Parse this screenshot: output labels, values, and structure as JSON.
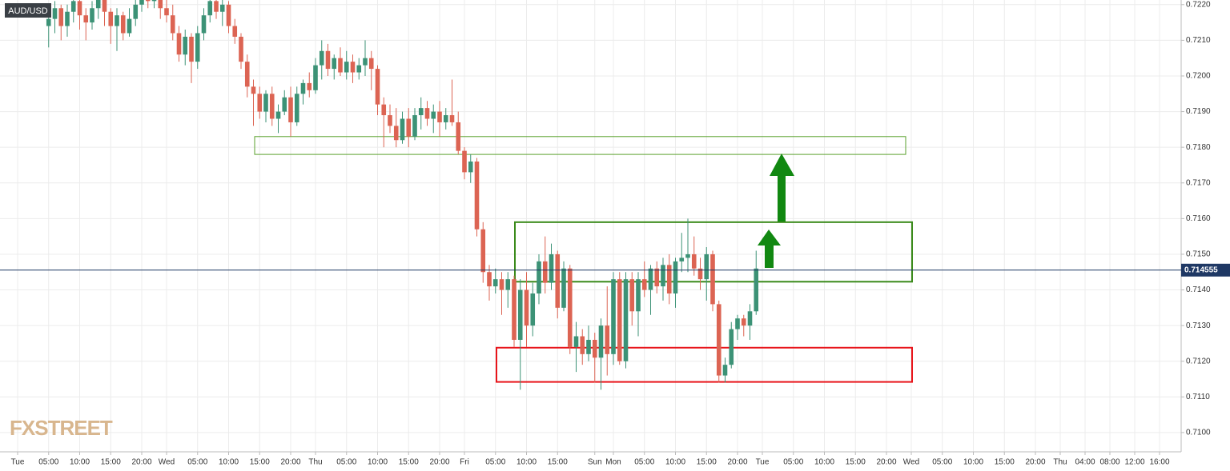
{
  "chart_data": {
    "type": "candlestick",
    "symbol": "AUD/USD",
    "watermark": "FXSTREET",
    "categories": [
      "Tue",
      null,
      null,
      null,
      null,
      "05:00",
      null,
      null,
      null,
      null,
      "10:00",
      null,
      null,
      null,
      null,
      "15:00",
      null,
      null,
      null,
      null,
      "20:00",
      null,
      null,
      null,
      "Wed",
      null,
      null,
      null,
      null,
      "05:00",
      null,
      null,
      null,
      null,
      "10:00",
      null,
      null,
      null,
      null,
      "15:00",
      null,
      null,
      null,
      null,
      "20:00",
      null,
      null,
      null,
      "Thu",
      null,
      null,
      null,
      null,
      "05:00",
      null,
      null,
      null,
      null,
      "10:00",
      null,
      null,
      null,
      null,
      "15:00",
      null,
      null,
      null,
      null,
      "20:00",
      null,
      null,
      null,
      "Fri",
      null,
      null,
      null,
      null,
      "05:00",
      null,
      null,
      null,
      null,
      "10:00",
      null,
      null,
      null,
      null,
      "15:00",
      null,
      null,
      null,
      null,
      null,
      "Sun",
      null,
      null,
      "Mon",
      null,
      null,
      null,
      null,
      "05:00",
      null,
      null,
      null,
      null,
      "10:00",
      null,
      null,
      null,
      null,
      "15:00",
      null,
      null,
      null,
      null,
      "20:00",
      null,
      null,
      null,
      "Tue",
      null,
      null,
      null,
      null,
      "05:00",
      null,
      null,
      null,
      null,
      "10:00",
      null,
      null,
      null,
      null,
      "15:00",
      null,
      null,
      null,
      null,
      "20:00",
      null,
      null,
      null,
      "Wed",
      null,
      null,
      null,
      null,
      "05:00",
      null,
      null,
      null,
      null,
      "10:00",
      null,
      null,
      null,
      null,
      "15:00",
      null,
      null,
      null,
      null,
      "20:00",
      null,
      null,
      null,
      "Thu",
      null,
      null,
      null,
      "04:00",
      null,
      null,
      null,
      "08:00",
      null,
      null,
      null,
      "12:00",
      null,
      null,
      null,
      "16:00"
    ],
    "open": [
      null,
      null,
      null,
      null,
      null,
      0.7214,
      0.7216,
      0.7219,
      0.7214,
      0.7218,
      0.7221,
      0.7217,
      0.7215,
      0.7219,
      0.7222,
      0.7218,
      0.7214,
      0.7217,
      0.7212,
      0.7216,
      0.722,
      0.7223,
      0.7221,
      0.7222,
      0.7219,
      0.7217,
      0.7212,
      0.7206,
      0.7211,
      0.7204,
      0.7212,
      0.7217,
      0.7221,
      0.7218,
      0.722,
      0.7214,
      0.7211,
      0.7204,
      0.7197,
      0.7195,
      0.719,
      0.7195,
      0.7188,
      0.719,
      0.7194,
      0.7187,
      0.7195,
      0.7198,
      0.7196,
      0.7203,
      0.7207,
      0.7202,
      0.7205,
      0.7201,
      0.7204,
      0.7201,
      0.7203,
      0.7205,
      0.7202,
      0.7192,
      0.7189,
      0.7186,
      0.7182,
      0.7188,
      0.7183,
      0.7189,
      0.7191,
      0.7188,
      0.719,
      0.7187,
      0.7189,
      0.7187,
      0.7179,
      0.7173,
      0.7176,
      0.7157,
      0.7145,
      0.7141,
      0.7143,
      0.714,
      0.7143,
      0.7126,
      0.714,
      0.713,
      0.7139,
      0.7148,
      0.7142,
      0.715,
      0.7135,
      0.7146,
      0.7124,
      0.7127,
      0.7122,
      0.7126,
      0.7121,
      0.713,
      0.7122,
      0.7143,
      0.712,
      0.7143,
      0.7134,
      0.7143,
      0.714,
      0.7146,
      0.7141,
      0.7147,
      0.7139,
      0.7148,
      0.7149,
      0.715,
      0.7146,
      0.7143,
      0.715,
      0.7136,
      0.7116,
      0.7119,
      0.7129,
      0.7132,
      0.713,
      0.7134,
      null,
      null,
      null,
      null,
      null,
      null,
      null,
      null,
      null,
      null,
      null,
      null,
      null,
      null,
      null,
      null,
      null,
      null,
      null,
      null,
      null,
      null,
      null,
      null,
      null,
      null,
      null,
      null,
      null,
      null,
      null,
      null,
      null,
      null,
      null,
      null,
      null,
      null,
      null,
      null,
      null,
      null,
      null,
      null,
      null,
      null,
      null,
      null,
      null,
      null,
      null,
      null,
      null,
      null,
      null,
      null,
      null,
      null,
      null,
      null,
      null,
      null,
      null,
      null,
      null
    ],
    "high": [
      null,
      null,
      null,
      null,
      null,
      0.722,
      0.7221,
      0.722,
      0.722,
      0.7223,
      0.7222,
      0.7219,
      0.7221,
      0.7224,
      0.7223,
      0.7219,
      0.7219,
      0.7218,
      0.7219,
      0.7223,
      0.7225,
      0.7226,
      0.7224,
      0.7223,
      0.7222,
      0.722,
      0.7214,
      0.7213,
      0.7212,
      0.7214,
      0.7219,
      0.7223,
      0.7223,
      0.7222,
      0.7221,
      0.7216,
      0.7212,
      0.7206,
      0.7199,
      0.7197,
      0.7196,
      0.7197,
      0.7192,
      0.7196,
      0.7197,
      0.7197,
      0.7199,
      0.7201,
      0.7205,
      0.721,
      0.7209,
      0.7206,
      0.7208,
      0.7207,
      0.7206,
      0.7205,
      0.721,
      0.7207,
      0.7203,
      0.7194,
      0.7192,
      0.7191,
      0.719,
      0.7191,
      0.7191,
      0.7194,
      0.7193,
      0.7192,
      0.7193,
      0.7191,
      0.7199,
      0.719,
      0.718,
      0.7178,
      0.7177,
      0.7159,
      0.7147,
      0.7146,
      0.7145,
      0.7145,
      0.7144,
      0.7143,
      0.7145,
      0.7142,
      0.715,
      0.7155,
      0.7153,
      0.7151,
      0.7148,
      0.7147,
      0.7131,
      0.7129,
      0.713,
      0.7128,
      0.7132,
      0.7141,
      0.7145,
      0.7145,
      0.7145,
      0.7145,
      0.7145,
      0.7148,
      0.7147,
      0.7148,
      0.7149,
      0.715,
      0.7149,
      0.7156,
      0.716,
      0.7155,
      0.7149,
      0.7152,
      0.7151,
      0.7137,
      0.7121,
      0.7131,
      0.7133,
      0.7133,
      0.7136,
      0.7151,
      null,
      null,
      null,
      null,
      null,
      null,
      null,
      null,
      null,
      null,
      null,
      null,
      null,
      null,
      null,
      null,
      null,
      null,
      null,
      null,
      null,
      null,
      null,
      null,
      null,
      null,
      null,
      null,
      null,
      null,
      null,
      null,
      null,
      null,
      null,
      null,
      null,
      null,
      null,
      null,
      null,
      null,
      null,
      null,
      null,
      null,
      null,
      null,
      null,
      null,
      null,
      null,
      null,
      null,
      null,
      null,
      null,
      null,
      null,
      null,
      null,
      null,
      null,
      null,
      null
    ],
    "low": [
      null,
      null,
      null,
      null,
      null,
      0.7208,
      0.7212,
      0.721,
      0.7211,
      0.7215,
      0.7213,
      0.721,
      0.7213,
      0.7216,
      0.7214,
      0.7209,
      0.7207,
      0.721,
      0.7211,
      0.7214,
      0.7218,
      0.7219,
      0.7219,
      0.7216,
      0.7215,
      0.721,
      0.7204,
      0.7203,
      0.7198,
      0.7202,
      0.721,
      0.7215,
      0.7216,
      0.7214,
      0.7212,
      0.7209,
      0.7202,
      0.7194,
      0.7186,
      0.7188,
      0.7187,
      0.7186,
      0.7184,
      0.7189,
      0.7183,
      0.7186,
      0.7192,
      0.7194,
      0.7195,
      0.7199,
      0.72,
      0.7199,
      0.72,
      0.7199,
      0.7198,
      0.7199,
      0.72,
      0.7196,
      0.7189,
      0.718,
      0.7184,
      0.718,
      0.7181,
      0.718,
      0.7182,
      0.7185,
      0.7186,
      0.7184,
      0.7183,
      0.7185,
      0.7186,
      0.7178,
      0.7171,
      0.717,
      0.7155,
      0.7142,
      0.7137,
      0.7139,
      0.7133,
      0.7135,
      0.7124,
      0.7112,
      0.7124,
      0.7127,
      0.7136,
      0.7139,
      0.714,
      0.7132,
      0.7134,
      0.7122,
      0.7117,
      0.7119,
      0.712,
      0.7114,
      0.7112,
      0.7116,
      0.7119,
      0.7119,
      0.7118,
      0.713,
      0.7127,
      0.7138,
      0.7133,
      0.7139,
      0.7137,
      0.7136,
      0.7135,
      0.7145,
      0.7145,
      0.7144,
      0.714,
      0.7137,
      0.7134,
      0.7114,
      0.7114,
      0.7118,
      0.7126,
      0.7127,
      0.7126,
      0.7133,
      null,
      null,
      null,
      null,
      null,
      null,
      null,
      null,
      null,
      null,
      null,
      null,
      null,
      null,
      null,
      null,
      null,
      null,
      null,
      null,
      null,
      null,
      null,
      null,
      null,
      null,
      null,
      null,
      null,
      null,
      null,
      null,
      null,
      null,
      null,
      null,
      null,
      null,
      null,
      null,
      null,
      null,
      null,
      null,
      null,
      null,
      null,
      null,
      null,
      null,
      null,
      null,
      null,
      null,
      null,
      null,
      null,
      null,
      null,
      null,
      null,
      null,
      null,
      null,
      null
    ],
    "close": [
      null,
      null,
      null,
      null,
      null,
      0.7216,
      0.7219,
      0.7214,
      0.7218,
      0.7221,
      0.7217,
      0.7215,
      0.7219,
      0.7222,
      0.7218,
      0.7214,
      0.7217,
      0.7212,
      0.7216,
      0.722,
      0.7223,
      0.7221,
      0.7222,
      0.7219,
      0.7217,
      0.7212,
      0.7206,
      0.7211,
      0.7204,
      0.7212,
      0.7217,
      0.7221,
      0.7218,
      0.722,
      0.7214,
      0.7211,
      0.7204,
      0.7197,
      0.7195,
      0.719,
      0.7195,
      0.7188,
      0.719,
      0.7194,
      0.7187,
      0.7195,
      0.7198,
      0.7196,
      0.7203,
      0.7207,
      0.7202,
      0.7205,
      0.7201,
      0.7204,
      0.7201,
      0.7203,
      0.7205,
      0.7202,
      0.7192,
      0.7189,
      0.7186,
      0.7182,
      0.7188,
      0.7183,
      0.7189,
      0.7191,
      0.7188,
      0.719,
      0.7187,
      0.7189,
      0.7187,
      0.7179,
      0.7173,
      0.7176,
      0.7157,
      0.7145,
      0.7141,
      0.7143,
      0.714,
      0.7143,
      0.7126,
      0.714,
      0.713,
      0.7139,
      0.7148,
      0.7142,
      0.715,
      0.7135,
      0.7146,
      0.7124,
      0.7127,
      0.7122,
      0.7126,
      0.7121,
      0.713,
      0.7122,
      0.7143,
      0.712,
      0.7143,
      0.7134,
      0.7143,
      0.714,
      0.7146,
      0.7141,
      0.7147,
      0.7139,
      0.7148,
      0.7149,
      0.715,
      0.7146,
      0.7143,
      0.715,
      0.7136,
      0.7116,
      0.7119,
      0.7129,
      0.7132,
      0.713,
      0.7134,
      0.7146,
      null,
      null,
      null,
      null,
      null,
      null,
      null,
      null,
      null,
      null,
      null,
      null,
      null,
      null,
      null,
      null,
      null,
      null,
      null,
      null,
      null,
      null,
      null,
      null,
      null,
      null,
      null,
      null,
      null,
      null,
      null,
      null,
      null,
      null,
      null,
      null,
      null,
      null,
      null,
      null,
      null,
      null,
      null,
      null,
      null,
      null,
      null,
      null,
      null,
      null,
      null,
      null,
      null,
      null,
      null,
      null,
      null,
      null,
      null,
      null,
      null,
      null,
      null,
      null,
      null
    ],
    "up_color": "#3c9276",
    "down_color": "#dc6453",
    "ylim": [
      0.70946,
      0.72213
    ],
    "yticks": [
      {
        "value": 0.71,
        "label": "0.7100"
      },
      {
        "value": 0.711,
        "label": "0.7110"
      },
      {
        "value": 0.712,
        "label": "0.7120"
      },
      {
        "value": 0.713,
        "label": "0.7130"
      },
      {
        "value": 0.714,
        "label": "0.7140"
      },
      {
        "value": 0.715,
        "label": "0.7150"
      },
      {
        "value": 0.716,
        "label": "0.7160"
      },
      {
        "value": 0.717,
        "label": "0.7170"
      },
      {
        "value": 0.718,
        "label": "0.7180"
      },
      {
        "value": 0.719,
        "label": "0.7190"
      },
      {
        "value": 0.72,
        "label": "0.7200"
      },
      {
        "value": 0.721,
        "label": "0.7210"
      },
      {
        "value": 0.722,
        "label": "0.7220"
      }
    ],
    "grid": true,
    "last_price": 0.714555,
    "last_price_color": "#1f3864",
    "zones": [
      {
        "low": 0.7178,
        "high": 0.7183,
        "color": "#5aa02c"
      },
      {
        "low": 0.71423,
        "high": 0.7159,
        "color": "#3a8a1a"
      },
      {
        "low": 0.71142,
        "high": 0.71238,
        "color": "#e8141a"
      }
    ]
  }
}
